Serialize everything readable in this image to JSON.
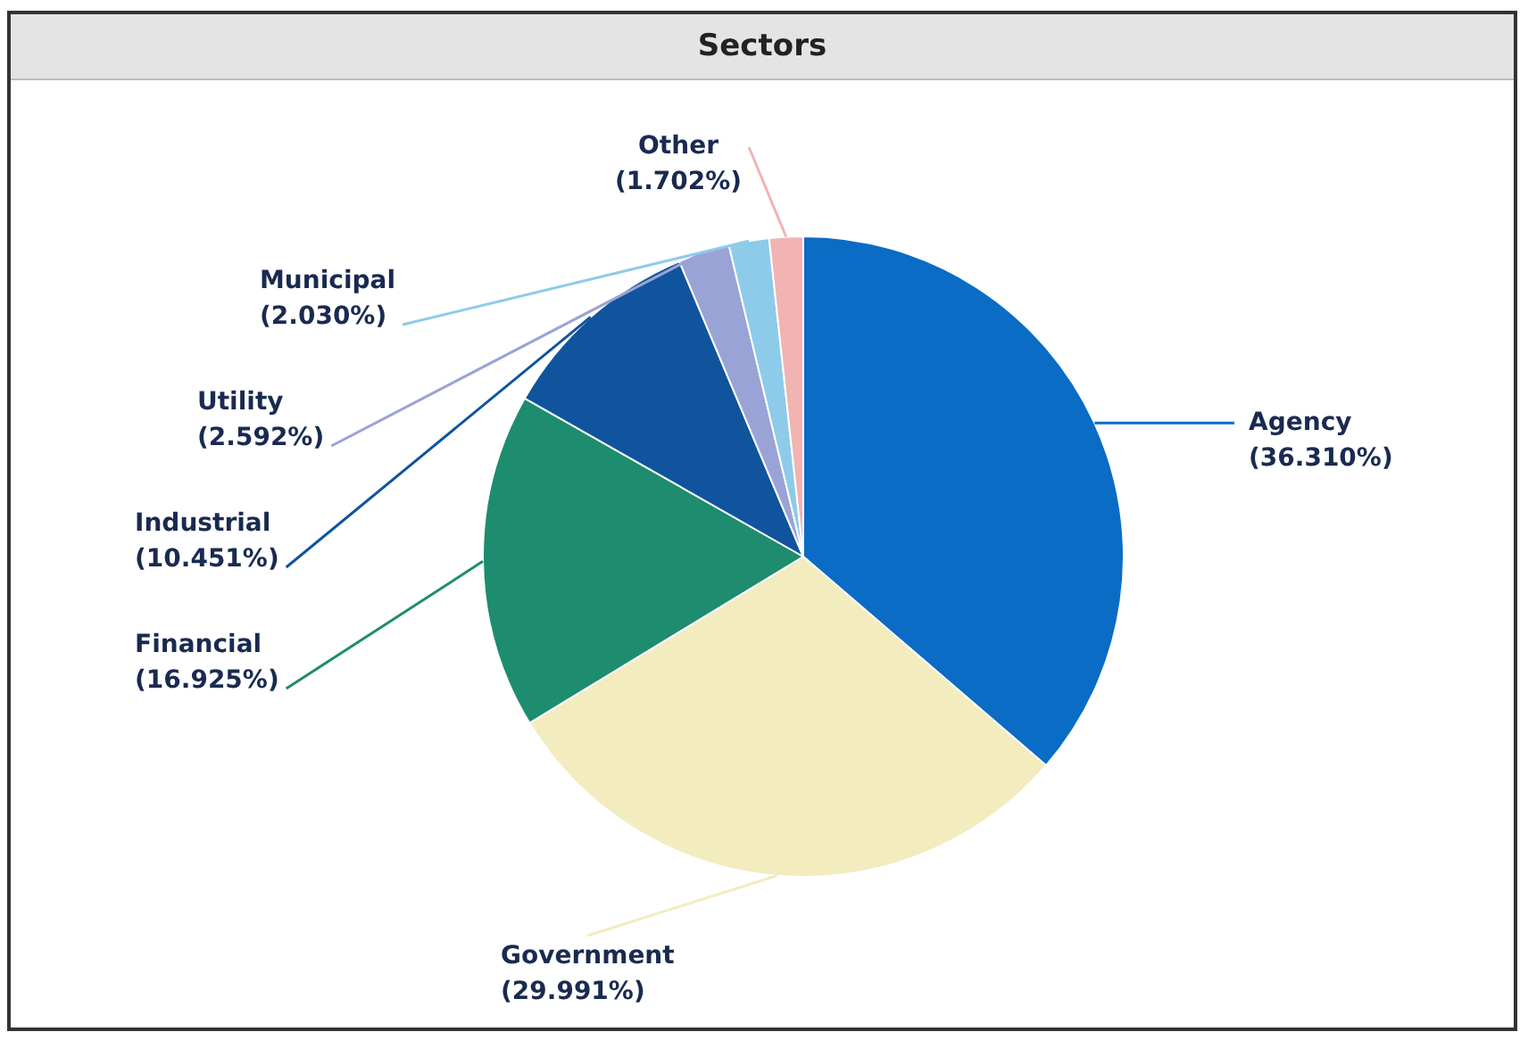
{
  "chart_data": {
    "type": "pie",
    "title": "Sectors",
    "categories": [
      "Agency",
      "Government",
      "Financial",
      "Industrial",
      "Utility",
      "Municipal",
      "Other"
    ],
    "values": [
      36.31,
      29.991,
      16.925,
      10.451,
      2.592,
      2.03,
      1.702
    ],
    "value_labels": [
      "(36.310%)",
      "(29.991%)",
      "(16.925%)",
      "(10.451%)",
      "(2.592%)",
      "(2.030%)",
      "(1.702%)"
    ],
    "colors": [
      "#0a6cc4",
      "#f3ecbf",
      "#1e8c6e",
      "#10549e",
      "#9aa3d6",
      "#8ecbea",
      "#f2b3b3"
    ],
    "legend": false
  }
}
